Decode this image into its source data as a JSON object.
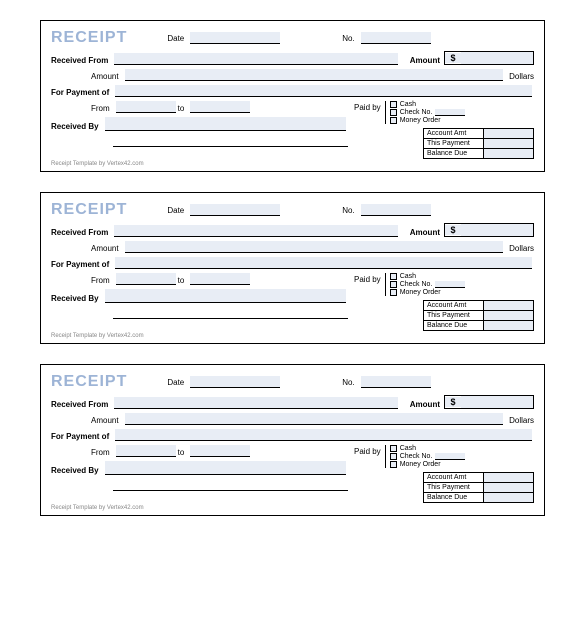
{
  "colors": {
    "title_color": "#9db4d6",
    "fill_bg": "#e8edf5",
    "border": "#000000",
    "text": "#000000",
    "footer": "#888888"
  },
  "receipt": {
    "title": "RECEIPT",
    "date_label": "Date",
    "no_label": "No.",
    "received_from_label": "Received From",
    "amount_label_top": "Amount",
    "amount_symbol": "$",
    "amount_label": "Amount",
    "dollars_label": "Dollars",
    "for_payment_label": "For Payment of",
    "from_label": "From",
    "to_label": "to",
    "paid_by_label": "Paid by",
    "paid_options": {
      "cash": "Cash",
      "check": "Check No.",
      "money_order": "Money Order"
    },
    "received_by_label": "Received By",
    "summary": {
      "account_amt": "Account Amt",
      "this_payment": "This Payment",
      "balance_due": "Balance Due"
    },
    "footer": "Receipt Template by Vertex42.com",
    "values": {
      "date": "",
      "no": "",
      "received_from": "",
      "amount_box": "",
      "amount_line": "",
      "for_payment": "",
      "from": "",
      "to": "",
      "check_no": "",
      "received_by": "",
      "account_amt": "",
      "this_payment": "",
      "balance_due": ""
    }
  },
  "copies": 3
}
